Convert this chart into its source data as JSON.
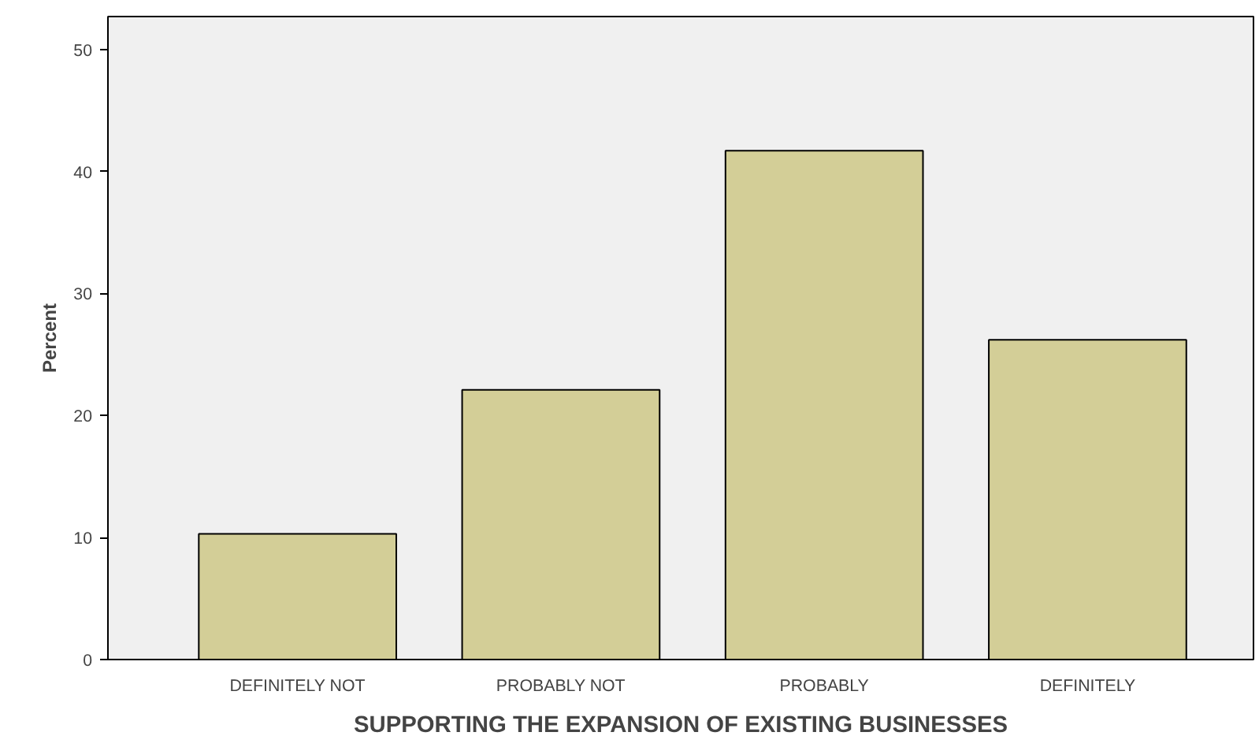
{
  "chart_data": {
    "type": "bar",
    "xlabel": "SUPPORTING THE EXPANSION OF EXISTING BUSINESSES",
    "ylabel": "Percent",
    "categories": [
      "DEFINITELY NOT",
      "PROBABLY NOT",
      "PROBABLY",
      "DEFINITELY"
    ],
    "values": [
      10.3,
      22.1,
      41.7,
      26.2
    ],
    "color": "#d3ce97",
    "ylim": [
      0,
      52.7
    ],
    "yticks": [
      0,
      10,
      20,
      30,
      40,
      50
    ],
    "grid": false
  }
}
